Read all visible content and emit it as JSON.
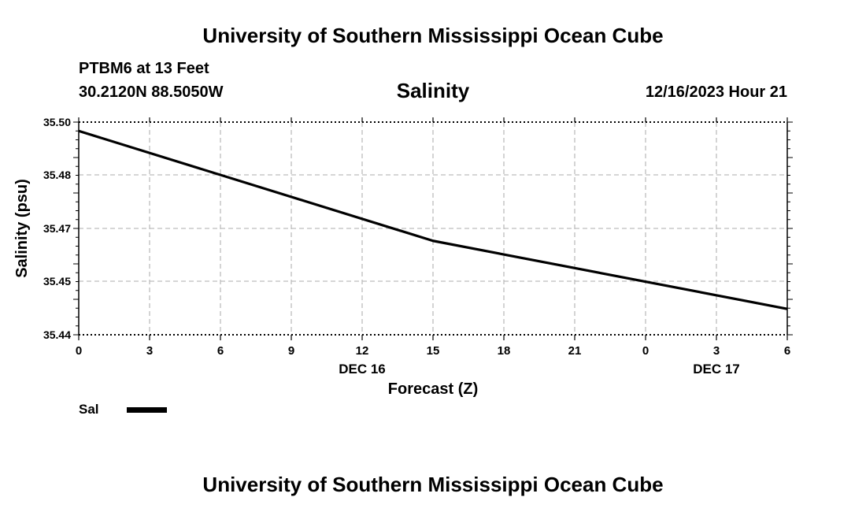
{
  "header": {
    "title": "University of Southern Mississippi Ocean Cube",
    "station": "PTBM6 at 13 Feet",
    "coordinates": "30.2120N  88.5050W",
    "timestamp": "12/16/2023 Hour 21"
  },
  "footer": {
    "title": "University of Southern Mississippi Ocean Cube"
  },
  "chart_data": {
    "type": "line",
    "title": "Salinity",
    "xlabel": "Forecast (Z)",
    "ylabel": "Salinity (psu)",
    "x_tick_labels": [
      "0",
      "3",
      "6",
      "9",
      "12",
      "15",
      "18",
      "21",
      "0",
      "3",
      "6"
    ],
    "x_date_labels": [
      {
        "at_tick": 4,
        "label": "DEC 16"
      },
      {
        "at_tick": 9,
        "label": "DEC 17"
      }
    ],
    "y_tick_labels": [
      "35.50",
      "35.48",
      "35.47",
      "35.45",
      "35.44"
    ],
    "y_tick_values": [
      35.5,
      35.48,
      35.47,
      35.45,
      35.44
    ],
    "ylim": [
      35.44,
      35.5
    ],
    "grid": true,
    "series": [
      {
        "name": "Sal",
        "color": "#000000",
        "x_tick_index": [
          0,
          5,
          10
        ],
        "values": [
          35.4975,
          35.4665,
          35.4473
        ]
      }
    ],
    "legend": {
      "placement": "bottom-left",
      "entries": [
        "Sal"
      ]
    }
  }
}
